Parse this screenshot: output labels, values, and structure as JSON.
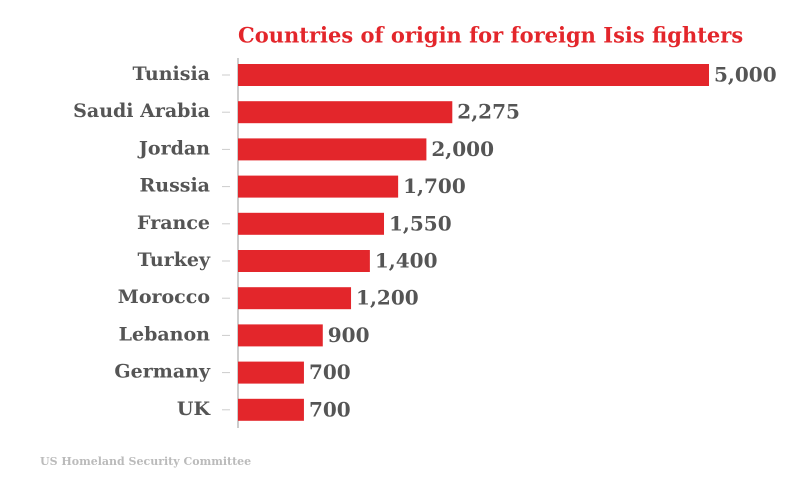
{
  "chart_data": {
    "type": "bar",
    "orientation": "horizontal",
    "title": "Countries of origin for foreign Isis fighters",
    "categories": [
      "Tunisia",
      "Saudi Arabia",
      "Jordan",
      "Russia",
      "France",
      "Turkey",
      "Morocco",
      "Lebanon",
      "Germany",
      "UK"
    ],
    "values": [
      5000,
      2275,
      2000,
      1700,
      1550,
      1400,
      1200,
      900,
      700,
      700
    ],
    "value_labels": [
      "5,000",
      "2,275",
      "2,000",
      "1,700",
      "1,550",
      "1,400",
      "1,200",
      "900",
      "700",
      "700"
    ],
    "color": "#e3262b",
    "source": "US Homeland Security Committee"
  }
}
